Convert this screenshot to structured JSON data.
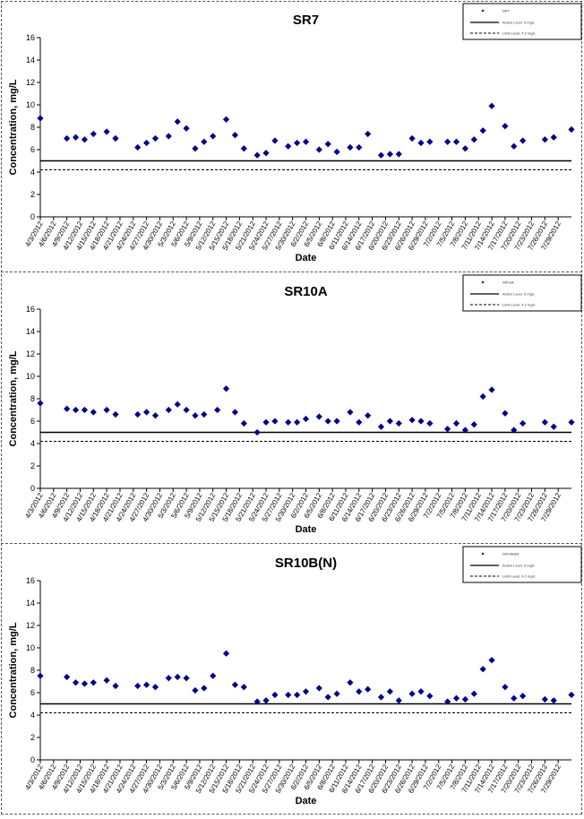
{
  "legend": {
    "action_label": "Action Level: 5 mg/L",
    "limit_label": "Limit Level: 4.2 mg/L"
  },
  "chart_data": [
    {
      "type": "scatter",
      "title": "SR7",
      "xlabel": "Date",
      "ylabel": "Concentration, mg/L",
      "ylim": [
        0,
        16
      ],
      "yticks": [
        0,
        2,
        4,
        6,
        8,
        10,
        12,
        14,
        16
      ],
      "x_ticks": [
        "4/3/2012",
        "4/6/2012",
        "4/9/2012",
        "4/12/2012",
        "4/15/2012",
        "4/18/2012",
        "4/21/2012",
        "4/24/2012",
        "4/27/2012",
        "4/30/2012",
        "5/3/2012",
        "5/6/2012",
        "5/9/2012",
        "5/12/2012",
        "5/15/2012",
        "5/18/2012",
        "5/21/2012",
        "5/24/2012",
        "5/27/2012",
        "5/30/2012",
        "6/2/2012",
        "6/5/2012",
        "6/8/2012",
        "6/11/2012",
        "6/14/2012",
        "6/17/2012",
        "6/20/2012",
        "6/23/2012",
        "6/26/2012",
        "6/29/2012",
        "7/2/2012",
        "7/5/2012",
        "7/8/2012",
        "7/11/2012",
        "7/14/2012",
        "7/17/2012",
        "7/20/2012",
        "7/23/2012",
        "7/26/2012",
        "7/29/2012"
      ],
      "xlim": [
        "4/3/2012",
        "8/1/2012"
      ],
      "grid": false,
      "legend_position": "top-right",
      "series": [
        {
          "name": "SR7",
          "x": [
            "4/3/2012",
            "4/9/2012",
            "4/11/2012",
            "4/13/2012",
            "4/15/2012",
            "4/18/2012",
            "4/20/2012",
            "4/25/2012",
            "4/27/2012",
            "4/29/2012",
            "5/2/2012",
            "5/4/2012",
            "5/6/2012",
            "5/8/2012",
            "5/10/2012",
            "5/12/2012",
            "5/15/2012",
            "5/17/2012",
            "5/19/2012",
            "5/22/2012",
            "5/24/2012",
            "5/26/2012",
            "5/29/2012",
            "5/31/2012",
            "6/2/2012",
            "6/5/2012",
            "6/7/2012",
            "6/9/2012",
            "6/12/2012",
            "6/14/2012",
            "6/16/2012",
            "6/19/2012",
            "6/21/2012",
            "6/23/2012",
            "6/26/2012",
            "6/28/2012",
            "6/30/2012",
            "7/4/2012",
            "7/6/2012",
            "7/8/2012",
            "7/10/2012",
            "7/12/2012",
            "7/14/2012",
            "7/17/2012",
            "7/19/2012",
            "7/21/2012",
            "7/26/2012",
            "7/28/2012",
            "8/1/2012"
          ],
          "y": [
            8.8,
            7.0,
            7.1,
            6.9,
            7.4,
            7.6,
            7.0,
            6.2,
            6.6,
            7.0,
            7.2,
            8.5,
            7.9,
            6.1,
            6.7,
            7.2,
            8.7,
            7.3,
            6.1,
            5.5,
            5.7,
            6.8,
            6.3,
            6.6,
            6.7,
            6.0,
            6.5,
            5.8,
            6.2,
            6.2,
            7.4,
            5.5,
            5.6,
            5.6,
            7.0,
            6.6,
            6.7,
            6.7,
            6.7,
            6.1,
            6.9,
            7.7,
            9.9,
            8.1,
            6.3,
            6.8,
            6.9,
            7.1,
            7.8
          ]
        }
      ],
      "reference_lines": [
        {
          "name": "Action Level: 5 mg/L",
          "y": 5,
          "style": "solid"
        },
        {
          "name": "Limit Level: 4.2 mg/L",
          "y": 4.2,
          "style": "dashed"
        }
      ]
    },
    {
      "type": "scatter",
      "title": "SR10A",
      "xlabel": "Date",
      "ylabel": "Concentration, mg/L",
      "ylim": [
        0,
        16
      ],
      "yticks": [
        0,
        2,
        4,
        6,
        8,
        10,
        12,
        14,
        16
      ],
      "x_ticks": [
        "4/3/2012",
        "4/6/2012",
        "4/9/2012",
        "4/12/2012",
        "4/15/2012",
        "4/18/2012",
        "4/21/2012",
        "4/24/2012",
        "4/27/2012",
        "4/30/2012",
        "5/3/2012",
        "5/6/2012",
        "5/9/2012",
        "5/12/2012",
        "5/15/2012",
        "5/18/2012",
        "5/21/2012",
        "5/24/2012",
        "5/27/2012",
        "5/30/2012",
        "6/2/2012",
        "6/5/2012",
        "6/8/2012",
        "6/11/2012",
        "6/14/2012",
        "6/17/2012",
        "6/20/2012",
        "6/23/2012",
        "6/26/2012",
        "6/29/2012",
        "7/2/2012",
        "7/5/2012",
        "7/8/2012",
        "7/11/2012",
        "7/14/2012",
        "7/17/2012",
        "7/20/2012",
        "7/23/2012",
        "7/26/2012",
        "7/29/2012"
      ],
      "xlim": [
        "4/3/2012",
        "8/1/2012"
      ],
      "grid": false,
      "legend_position": "top-right",
      "series": [
        {
          "name": "SR10A",
          "x": [
            "4/3/2012",
            "4/9/2012",
            "4/11/2012",
            "4/13/2012",
            "4/15/2012",
            "4/18/2012",
            "4/20/2012",
            "4/25/2012",
            "4/27/2012",
            "4/29/2012",
            "5/2/2012",
            "5/4/2012",
            "5/6/2012",
            "5/8/2012",
            "5/10/2012",
            "5/13/2012",
            "5/15/2012",
            "5/17/2012",
            "5/19/2012",
            "5/22/2012",
            "5/24/2012",
            "5/26/2012",
            "5/29/2012",
            "5/31/2012",
            "6/2/2012",
            "6/5/2012",
            "6/7/2012",
            "6/9/2012",
            "6/12/2012",
            "6/14/2012",
            "6/16/2012",
            "6/19/2012",
            "6/21/2012",
            "6/23/2012",
            "6/26/2012",
            "6/28/2012",
            "6/30/2012",
            "7/4/2012",
            "7/6/2012",
            "7/8/2012",
            "7/10/2012",
            "7/12/2012",
            "7/14/2012",
            "7/17/2012",
            "7/19/2012",
            "7/21/2012",
            "7/26/2012",
            "7/28/2012",
            "8/1/2012"
          ],
          "y": [
            7.6,
            7.1,
            7.0,
            7.0,
            6.8,
            7.0,
            6.6,
            6.6,
            6.8,
            6.5,
            7.0,
            7.5,
            7.0,
            6.5,
            6.6,
            7.0,
            8.9,
            6.8,
            5.8,
            5.0,
            5.9,
            6.0,
            5.9,
            5.9,
            6.2,
            6.4,
            6.0,
            6.0,
            6.8,
            5.9,
            6.5,
            5.5,
            6.0,
            5.8,
            6.1,
            6.0,
            5.8,
            5.3,
            5.8,
            5.2,
            5.7,
            8.2,
            8.8,
            6.7,
            5.2,
            5.8,
            5.9,
            5.5,
            5.9
          ]
        }
      ],
      "reference_lines": [
        {
          "name": "Action Level: 5 mg/L",
          "y": 5,
          "style": "solid"
        },
        {
          "name": "Limit Level: 4.2 mg/L",
          "y": 4.2,
          "style": "dashed"
        }
      ]
    },
    {
      "type": "scatter",
      "title": "SR10B(N)",
      "xlabel": "Date",
      "ylabel": "Concentration, mg/L",
      "ylim": [
        0,
        16
      ],
      "yticks": [
        0,
        2,
        4,
        6,
        8,
        10,
        12,
        14,
        16
      ],
      "x_ticks": [
        "4/3/2012",
        "4/6/2012",
        "4/9/2012",
        "4/12/2012",
        "4/15/2012",
        "4/18/2012",
        "4/21/2012",
        "4/24/2012",
        "4/27/2012",
        "4/30/2012",
        "5/3/2012",
        "5/6/2012",
        "5/9/2012",
        "5/12/2012",
        "5/15/2012",
        "5/18/2012",
        "5/21/2012",
        "5/24/2012",
        "5/27/2012",
        "5/30/2012",
        "6/2/2012",
        "6/5/2012",
        "6/8/2012",
        "6/11/2012",
        "6/14/2012",
        "6/17/2012",
        "6/20/2012",
        "6/23/2012",
        "6/26/2012",
        "6/29/2012",
        "7/2/2012",
        "7/5/2012",
        "7/8/2012",
        "7/11/2012",
        "7/14/2012",
        "7/17/2012",
        "7/20/2012",
        "7/23/2012",
        "7/26/2012",
        "7/29/2012"
      ],
      "xlim": [
        "4/3/2012",
        "8/1/2012"
      ],
      "grid": false,
      "legend_position": "top-right",
      "series": [
        {
          "name": "SR10B(N)",
          "x": [
            "4/3/2012",
            "4/9/2012",
            "4/11/2012",
            "4/13/2012",
            "4/15/2012",
            "4/18/2012",
            "4/20/2012",
            "4/25/2012",
            "4/27/2012",
            "4/29/2012",
            "5/2/2012",
            "5/4/2012",
            "5/6/2012",
            "5/8/2012",
            "5/10/2012",
            "5/12/2012",
            "5/15/2012",
            "5/17/2012",
            "5/19/2012",
            "5/22/2012",
            "5/24/2012",
            "5/26/2012",
            "5/29/2012",
            "5/31/2012",
            "6/2/2012",
            "6/5/2012",
            "6/7/2012",
            "6/9/2012",
            "6/12/2012",
            "6/14/2012",
            "6/16/2012",
            "6/19/2012",
            "6/21/2012",
            "6/23/2012",
            "6/26/2012",
            "6/28/2012",
            "6/30/2012",
            "7/4/2012",
            "7/6/2012",
            "7/8/2012",
            "7/10/2012",
            "7/12/2012",
            "7/14/2012",
            "7/17/2012",
            "7/19/2012",
            "7/21/2012",
            "7/26/2012",
            "7/28/2012",
            "8/1/2012"
          ],
          "y": [
            7.5,
            7.4,
            6.9,
            6.8,
            6.9,
            7.1,
            6.6,
            6.6,
            6.7,
            6.5,
            7.3,
            7.4,
            7.3,
            6.2,
            6.4,
            7.5,
            9.5,
            6.7,
            6.5,
            5.2,
            5.3,
            5.8,
            5.8,
            5.8,
            6.1,
            6.4,
            5.6,
            5.9,
            6.9,
            6.1,
            6.3,
            5.6,
            6.1,
            5.3,
            5.9,
            6.1,
            5.7,
            5.2,
            5.5,
            5.4,
            5.9,
            8.1,
            8.9,
            6.5,
            5.5,
            5.7,
            5.4,
            5.3,
            5.8
          ]
        }
      ],
      "reference_lines": [
        {
          "name": "Action Level: 5 mg/L",
          "y": 5,
          "style": "solid"
        },
        {
          "name": "Limit Level: 4.2 mg/L",
          "y": 4.2,
          "style": "dashed"
        }
      ]
    }
  ]
}
